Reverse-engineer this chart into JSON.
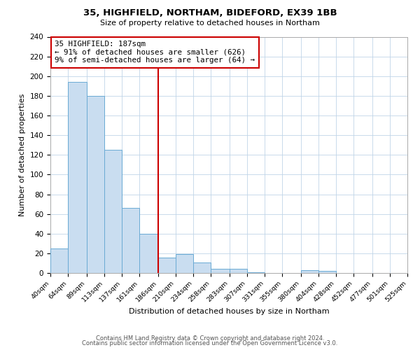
{
  "title": "35, HIGHFIELD, NORTHAM, BIDEFORD, EX39 1BB",
  "subtitle": "Size of property relative to detached houses in Northam",
  "xlabel": "Distribution of detached houses by size in Northam",
  "ylabel": "Number of detached properties",
  "bin_edges": [
    40,
    64,
    89,
    113,
    137,
    161,
    186,
    210,
    234,
    258,
    283,
    307,
    331,
    355,
    380,
    404,
    428,
    452,
    477,
    501,
    525
  ],
  "bin_counts": [
    25,
    194,
    180,
    125,
    66,
    40,
    16,
    19,
    11,
    4,
    4,
    1,
    0,
    0,
    3,
    2,
    0,
    0,
    0,
    0
  ],
  "bar_color": "#c9ddf0",
  "bar_edge_color": "#6aaad4",
  "vline_x": 186,
  "vline_color": "#cc0000",
  "annotation_line1": "35 HIGHFIELD: 187sqm",
  "annotation_line2": "← 91% of detached houses are smaller (626)",
  "annotation_line3": "9% of semi-detached houses are larger (64) →",
  "annotation_box_color": "#cc0000",
  "annotation_box_facecolor": "white",
  "xlim": [
    40,
    525
  ],
  "ylim": [
    0,
    240
  ],
  "yticks": [
    0,
    20,
    40,
    60,
    80,
    100,
    120,
    140,
    160,
    180,
    200,
    220,
    240
  ],
  "tick_labels": [
    "40sqm",
    "64sqm",
    "89sqm",
    "113sqm",
    "137sqm",
    "161sqm",
    "186sqm",
    "210sqm",
    "234sqm",
    "258sqm",
    "283sqm",
    "307sqm",
    "331sqm",
    "355sqm",
    "380sqm",
    "404sqm",
    "428sqm",
    "452sqm",
    "477sqm",
    "501sqm",
    "525sqm"
  ],
  "footer_line1": "Contains HM Land Registry data © Crown copyright and database right 2024.",
  "footer_line2": "Contains public sector information licensed under the Open Government Licence v3.0.",
  "background_color": "#ffffff",
  "grid_color": "#c0d4e8"
}
